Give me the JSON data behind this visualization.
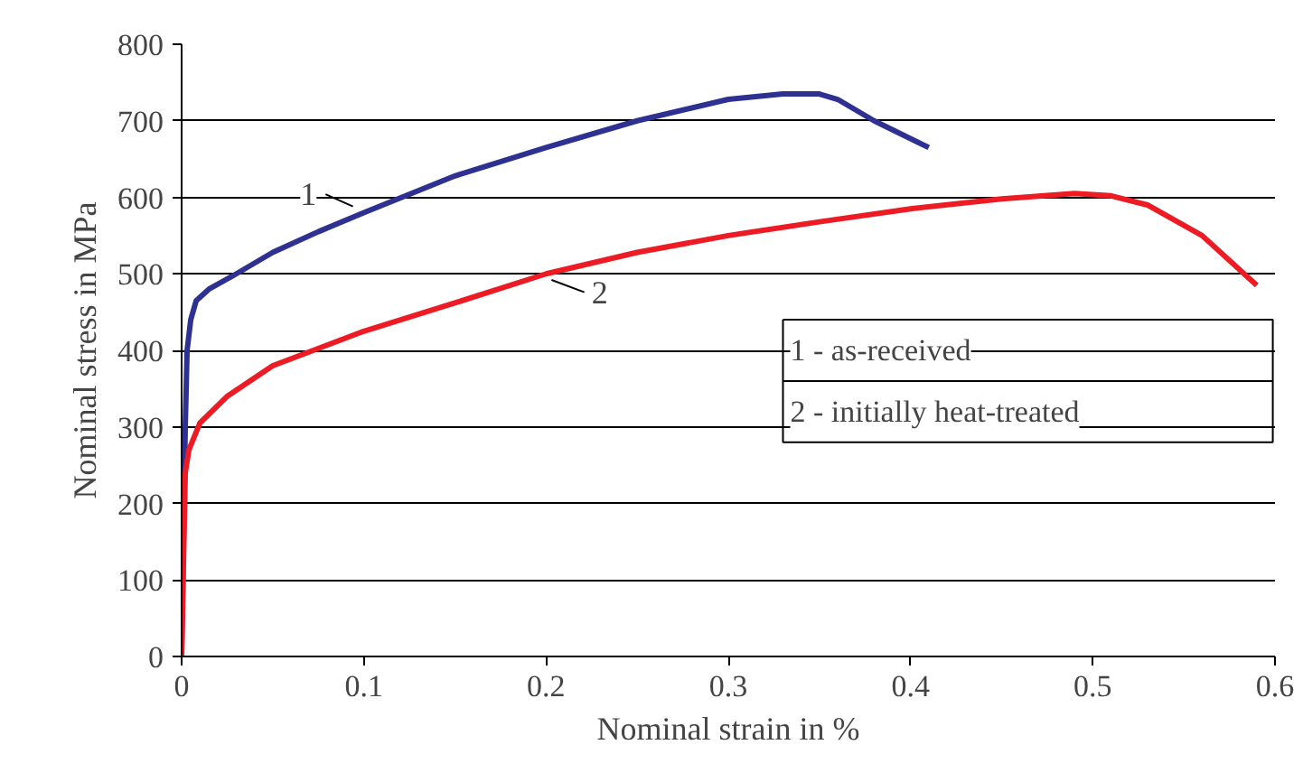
{
  "chart_data": {
    "type": "line",
    "xlabel": "Nominal strain in %",
    "ylabel": "Nominal stress in MPa",
    "xlim": [
      0,
      0.6
    ],
    "xticks": [
      {
        "value": 0,
        "label": "0"
      },
      0.1,
      0.2,
      0.3,
      0.4,
      0.5,
      0.6
    ],
    "ylim": [
      0,
      800
    ],
    "yticks": [
      0,
      100,
      200,
      300,
      400,
      500,
      600,
      700,
      800
    ],
    "grid": "y",
    "annotations": [
      "1 - as-received",
      "2 - initially heat-treated"
    ],
    "series": [
      {
        "name": "1",
        "color": "#2e3192",
        "x": [
          0,
          0.002,
          0.003,
          0.005,
          0.008,
          0.015,
          0.03,
          0.05,
          0.075,
          0.1,
          0.15,
          0.2,
          0.25,
          0.3,
          0.33,
          0.35,
          0.36,
          0.38,
          0.41
        ],
        "values": [
          0,
          300,
          400,
          440,
          465,
          480,
          500,
          528,
          555,
          580,
          628,
          665,
          700,
          728,
          735,
          735,
          728,
          700,
          665
        ]
      },
      {
        "name": "2",
        "color": "#ed1c24",
        "x": [
          0,
          0.001,
          0.002,
          0.004,
          0.01,
          0.025,
          0.05,
          0.1,
          0.15,
          0.2,
          0.25,
          0.3,
          0.35,
          0.4,
          0.45,
          0.49,
          0.51,
          0.53,
          0.56,
          0.59
        ],
        "values": [
          0,
          120,
          240,
          270,
          305,
          340,
          380,
          425,
          462,
          500,
          528,
          550,
          568,
          585,
          598,
          605,
          602,
          590,
          550,
          485
        ]
      }
    ]
  }
}
